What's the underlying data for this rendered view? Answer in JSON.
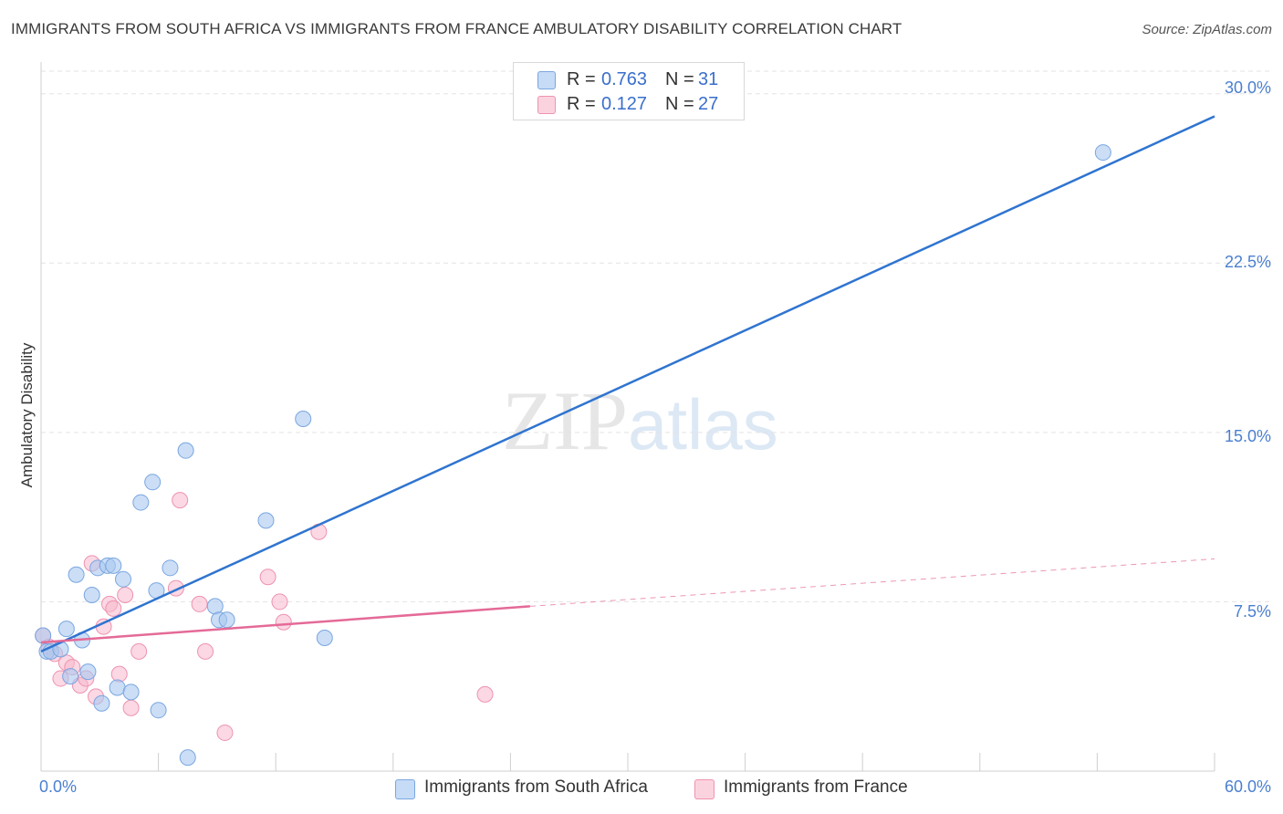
{
  "header": {
    "title": "IMMIGRANTS FROM SOUTH AFRICA VS IMMIGRANTS FROM FRANCE AMBULATORY DISABILITY CORRELATION CHART",
    "source": "Source: ZipAtlas.com"
  },
  "watermark": {
    "zip": "ZIP",
    "atlas": "atlas"
  },
  "legend": {
    "rows": [
      {
        "r_label": "R =",
        "r_value": "0.763",
        "n_label": "N =",
        "n_value": "31",
        "color": "#a9c8f0"
      },
      {
        "r_label": "R =",
        "r_value": "0.127",
        "n_label": "N =",
        "n_value": "27",
        "color": "#f7b8cc"
      }
    ]
  },
  "bottom_legend": [
    {
      "label": "Immigrants from South Africa",
      "color": "#a9c8f0"
    },
    {
      "label": "Immigrants from France",
      "color": "#f7b8cc"
    }
  ],
  "colors": {
    "blue_fill": "#a9c8f0",
    "blue_stroke": "#7aa6e0",
    "blue_line": "#2f74d0",
    "pink_fill": "#f7b8cc",
    "pink_stroke": "#ee93b0",
    "pink_line": "#e46a97",
    "grid": "#e3e3e3",
    "axis_text": "#4a7fd0"
  },
  "chart_data": {
    "type": "scatter",
    "title": "IMMIGRANTS FROM SOUTH AFRICA VS IMMIGRANTS FROM FRANCE AMBULATORY DISABILITY CORRELATION CHART",
    "xlabel": "",
    "ylabel": "Ambulatory Disability",
    "xlim": [
      0,
      60
    ],
    "ylim": [
      0,
      31
    ],
    "y_ticks": [
      7.5,
      15.0,
      22.5,
      30.0
    ],
    "y_tick_labels": [
      "7.5%",
      "15.0%",
      "22.5%",
      "30.0%"
    ],
    "x_tick_labels": [
      "0.0%",
      "60.0%"
    ],
    "grid": true,
    "series": [
      {
        "name": "Immigrants from South Africa",
        "r": 0.763,
        "n": 31,
        "points": [
          [
            0.1,
            6.0
          ],
          [
            0.3,
            5.3
          ],
          [
            0.5,
            5.3
          ],
          [
            1.0,
            5.4
          ],
          [
            1.3,
            6.3
          ],
          [
            1.8,
            8.7
          ],
          [
            1.5,
            4.2
          ],
          [
            2.1,
            5.8
          ],
          [
            2.4,
            4.4
          ],
          [
            2.6,
            7.8
          ],
          [
            2.9,
            9.0
          ],
          [
            3.1,
            3.0
          ],
          [
            3.4,
            9.1
          ],
          [
            3.7,
            9.1
          ],
          [
            3.9,
            3.7
          ],
          [
            4.2,
            8.5
          ],
          [
            4.6,
            3.5
          ],
          [
            5.1,
            11.9
          ],
          [
            5.7,
            12.8
          ],
          [
            5.9,
            8.0
          ],
          [
            6.0,
            2.7
          ],
          [
            6.6,
            9.0
          ],
          [
            7.4,
            14.2
          ],
          [
            7.5,
            0.6
          ],
          [
            8.9,
            7.3
          ],
          [
            9.1,
            6.7
          ],
          [
            9.5,
            6.7
          ],
          [
            11.5,
            11.1
          ],
          [
            13.4,
            15.6
          ],
          [
            14.5,
            5.9
          ],
          [
            54.3,
            27.4
          ]
        ],
        "trend": {
          "x": [
            0,
            60
          ],
          "y": [
            5.3,
            29.0
          ]
        }
      },
      {
        "name": "Immigrants from France",
        "r": 0.127,
        "n": 27,
        "points": [
          [
            0.1,
            6.0
          ],
          [
            0.4,
            5.5
          ],
          [
            0.7,
            5.2
          ],
          [
            1.0,
            4.1
          ],
          [
            1.3,
            4.8
          ],
          [
            1.6,
            4.6
          ],
          [
            2.0,
            3.8
          ],
          [
            2.3,
            4.1
          ],
          [
            2.6,
            9.2
          ],
          [
            2.8,
            3.3
          ],
          [
            3.2,
            6.4
          ],
          [
            3.5,
            7.4
          ],
          [
            3.7,
            7.2
          ],
          [
            4.0,
            4.3
          ],
          [
            4.3,
            7.8
          ],
          [
            4.6,
            2.8
          ],
          [
            5.0,
            5.3
          ],
          [
            6.9,
            8.1
          ],
          [
            7.1,
            12.0
          ],
          [
            8.1,
            7.4
          ],
          [
            8.4,
            5.3
          ],
          [
            9.4,
            1.7
          ],
          [
            11.6,
            8.6
          ],
          [
            12.2,
            7.5
          ],
          [
            12.4,
            6.6
          ],
          [
            14.2,
            10.6
          ],
          [
            22.7,
            3.4
          ]
        ],
        "trend": {
          "x": [
            0,
            25
          ],
          "y": [
            5.7,
            7.3
          ],
          "dashed_to": [
            60,
            9.4
          ]
        }
      }
    ]
  }
}
